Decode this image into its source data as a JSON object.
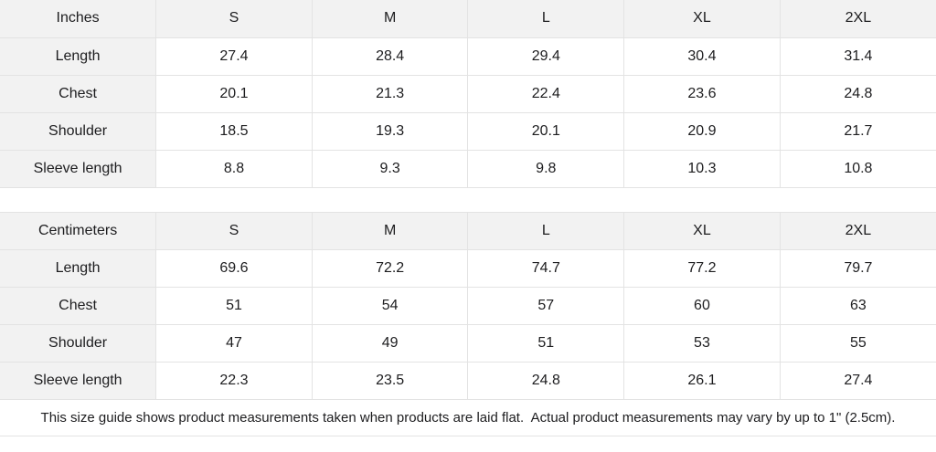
{
  "tables": [
    {
      "unit_label": "Inches",
      "sizes": [
        "S",
        "M",
        "L",
        "XL",
        "2XL"
      ],
      "rows": [
        {
          "label": "Length",
          "values": [
            "27.4",
            "28.4",
            "29.4",
            "30.4",
            "31.4"
          ]
        },
        {
          "label": "Chest",
          "values": [
            "20.1",
            "21.3",
            "22.4",
            "23.6",
            "24.8"
          ]
        },
        {
          "label": "Shoulder",
          "values": [
            "18.5",
            "19.3",
            "20.1",
            "20.9",
            "21.7"
          ]
        },
        {
          "label": "Sleeve length",
          "values": [
            "8.8",
            "9.3",
            "9.8",
            "10.3",
            "10.8"
          ]
        }
      ]
    },
    {
      "unit_label": "Centimeters",
      "sizes": [
        "S",
        "M",
        "L",
        "XL",
        "2XL"
      ],
      "rows": [
        {
          "label": "Length",
          "values": [
            "69.6",
            "72.2",
            "74.7",
            "77.2",
            "79.7"
          ]
        },
        {
          "label": "Chest",
          "values": [
            "51",
            "54",
            "57",
            "60",
            "63"
          ]
        },
        {
          "label": "Shoulder",
          "values": [
            "47",
            "49",
            "51",
            "53",
            "55"
          ]
        },
        {
          "label": "Sleeve length",
          "values": [
            "22.3",
            "23.5",
            "24.8",
            "26.1",
            "27.4"
          ]
        }
      ]
    }
  ],
  "footer": {
    "note": "This size guide shows product measurements taken when products are laid flat.  Actual product measurements may vary by up to 1\" (2.5cm)."
  },
  "colors": {
    "header_bg": "#f2f2f2",
    "border": "#e3e3e3",
    "text": "#1d1d1f",
    "cell_bg": "#ffffff"
  }
}
